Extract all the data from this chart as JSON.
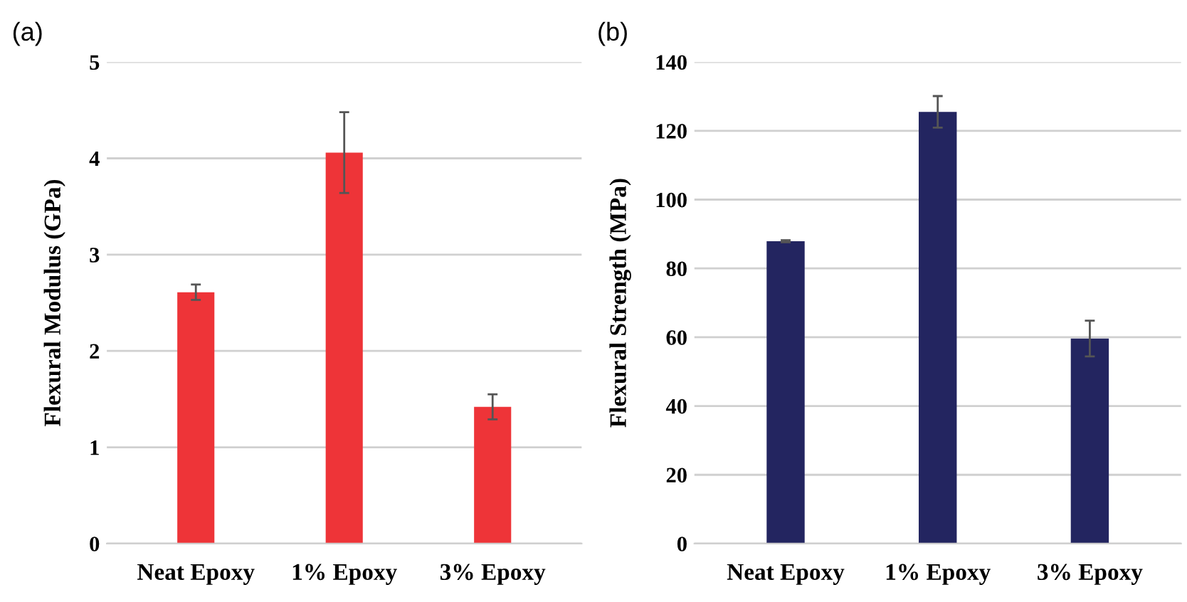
{
  "chart_data": [
    {
      "type": "bar",
      "title": "(a)",
      "ylabel": "Flexural Modulus (GPa)",
      "categories": [
        "Neat Epoxy",
        "1% Epoxy",
        "3% Epoxy"
      ],
      "values": [
        2.61,
        4.06,
        1.42
      ],
      "errors": [
        0.08,
        0.42,
        0.13
      ],
      "color": "#ee3438",
      "ylim": [
        0,
        5
      ],
      "yticks": [
        0,
        1,
        2,
        3,
        4,
        5
      ],
      "grid": "y"
    },
    {
      "type": "bar",
      "title": "(b)",
      "ylabel": "Flexural Strength (MPa)",
      "categories": [
        "Neat Epoxy",
        "1% Epoxy",
        "3% Epoxy"
      ],
      "values": [
        87.9,
        125.5,
        59.6
      ],
      "errors": [
        0.3,
        4.6,
        5.2
      ],
      "color": "#232560",
      "ylim": [
        0,
        140
      ],
      "yticks": [
        0,
        20,
        40,
        60,
        80,
        100,
        120,
        140
      ],
      "grid": "y"
    }
  ]
}
